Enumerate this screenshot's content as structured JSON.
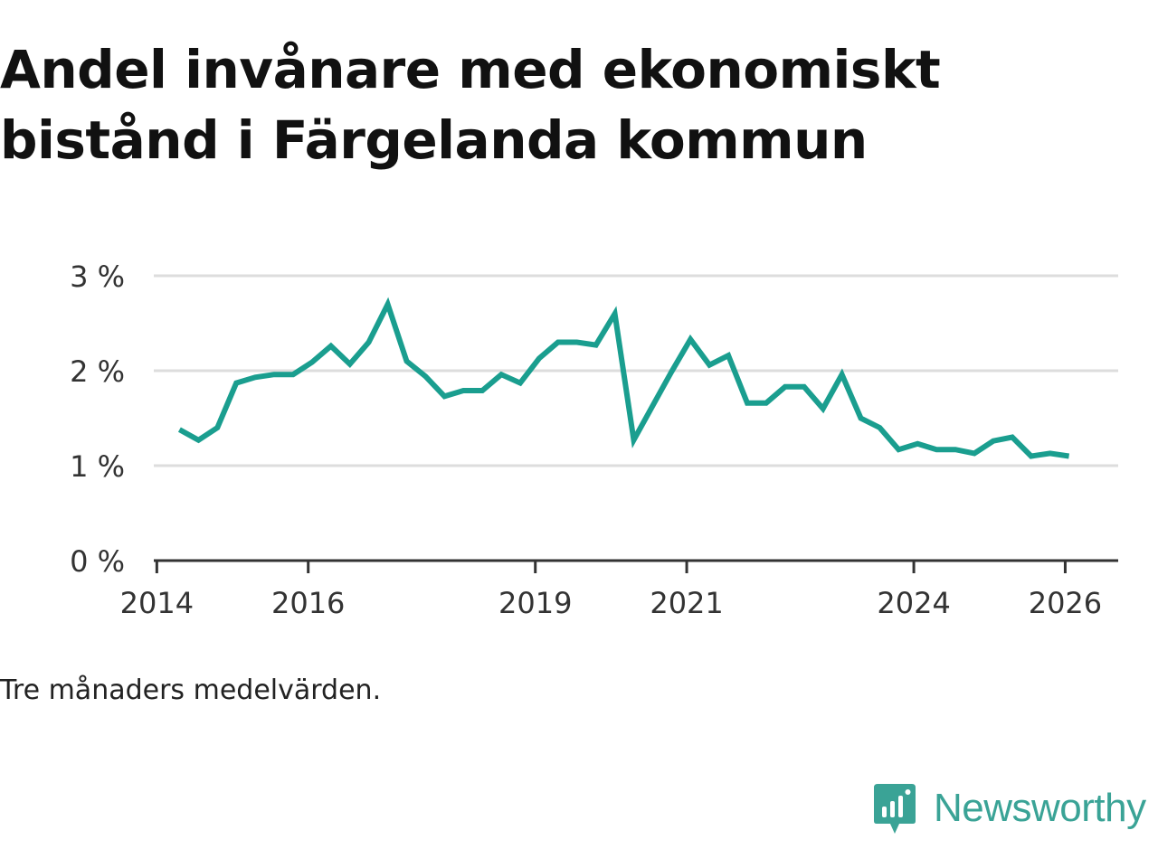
{
  "title": "Andel invånare med ekonomiskt bistånd i Färgelanda kommun",
  "note": "Tre månaders medelvärden.",
  "brand": "Newsworthy",
  "colors": {
    "line": "#1a9e8f",
    "grid": "#dddddd",
    "axis": "#333333",
    "brand": "#3aa396"
  },
  "chart_data": {
    "type": "line",
    "title": "Andel invånare med ekonomiskt bistånd i Färgelanda kommun",
    "xlabel": "",
    "ylabel": "",
    "ylim": [
      0,
      3
    ],
    "xlim": [
      2013.96,
      2026.7
    ],
    "y_ticks": [
      {
        "value": 0,
        "label": "0 %"
      },
      {
        "value": 1,
        "label": "1 %"
      },
      {
        "value": 2,
        "label": "2 %"
      },
      {
        "value": 3,
        "label": "3 %"
      }
    ],
    "x_ticks": [
      {
        "value": 2014,
        "label": "2014"
      },
      {
        "value": 2016,
        "label": "2016"
      },
      {
        "value": 2019,
        "label": "2019"
      },
      {
        "value": 2021,
        "label": "2021"
      },
      {
        "value": 2024,
        "label": "2024"
      },
      {
        "value": 2026,
        "label": "2026"
      }
    ],
    "grid": true,
    "series": [
      {
        "name": "Andel invånare med ekonomiskt bistånd",
        "x": [
          2014.3,
          2014.55,
          2014.8,
          2015.05,
          2015.3,
          2015.55,
          2015.8,
          2016.05,
          2016.3,
          2016.55,
          2016.8,
          2017.05,
          2017.3,
          2017.55,
          2017.8,
          2018.05,
          2018.3,
          2018.55,
          2018.8,
          2019.05,
          2019.3,
          2019.55,
          2019.8,
          2020.05,
          2020.3,
          2020.55,
          2020.8,
          2021.05,
          2021.3,
          2021.55,
          2021.8,
          2022.05,
          2022.3,
          2022.55,
          2022.8,
          2023.05,
          2023.3,
          2023.55,
          2023.8,
          2024.05,
          2024.3,
          2024.55,
          2024.8,
          2025.05,
          2025.3,
          2025.55,
          2025.8,
          2026.05
        ],
        "values": [
          1.38,
          1.27,
          1.4,
          1.87,
          1.93,
          1.96,
          1.96,
          2.09,
          2.26,
          2.07,
          2.3,
          2.7,
          2.1,
          1.94,
          1.73,
          1.79,
          1.79,
          1.96,
          1.87,
          2.13,
          2.3,
          2.3,
          2.27,
          2.6,
          1.27,
          1.63,
          1.99,
          2.33,
          2.06,
          2.16,
          1.66,
          1.66,
          1.83,
          1.83,
          1.6,
          1.96,
          1.5,
          1.4,
          1.17,
          1.23,
          1.17,
          1.17,
          1.13,
          1.26,
          1.3,
          1.1,
          1.13,
          1.1
        ]
      }
    ]
  }
}
